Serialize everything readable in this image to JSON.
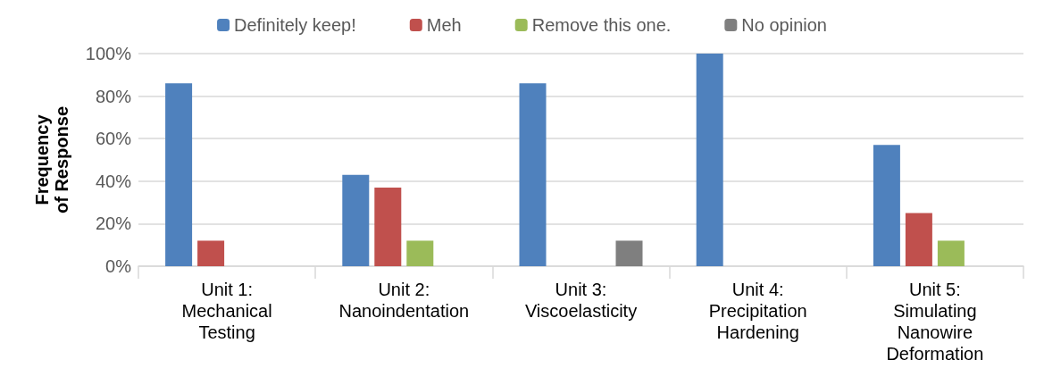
{
  "chart_data": {
    "type": "bar",
    "ylabel": "Frequency\nof Response",
    "categories": [
      "Unit 1:\nMechanical\nTesting",
      "Unit 2:\nNanoindentation",
      "Unit 3:\nViscoelasticity",
      "Unit 4:\nPrecipitation\nHardening",
      "Unit 5:\nSimulating\nNanowire\nDeformation"
    ],
    "series": [
      {
        "name": "Definitely keep!",
        "color": "#4f81bd",
        "values": [
          86,
          43,
          86,
          100,
          57
        ]
      },
      {
        "name": "Meh",
        "color": "#c0504d",
        "values": [
          12,
          37,
          0,
          0,
          25
        ]
      },
      {
        "name": "Remove this one.",
        "color": "#9bbb59",
        "values": [
          0,
          12,
          0,
          0,
          12
        ]
      },
      {
        "name": "No opinion",
        "color": "#7f7f7f",
        "values": [
          0,
          0,
          12,
          0,
          0
        ]
      }
    ],
    "ylim": [
      0,
      100
    ],
    "yticks": [
      {
        "value": 0,
        "label": "0%"
      },
      {
        "value": 20,
        "label": "20%"
      },
      {
        "value": 40,
        "label": "40%"
      },
      {
        "value": 60,
        "label": "60%"
      },
      {
        "value": 80,
        "label": "80%"
      },
      {
        "value": 100,
        "label": "100%"
      }
    ],
    "grid": "y",
    "legend": "top"
  }
}
